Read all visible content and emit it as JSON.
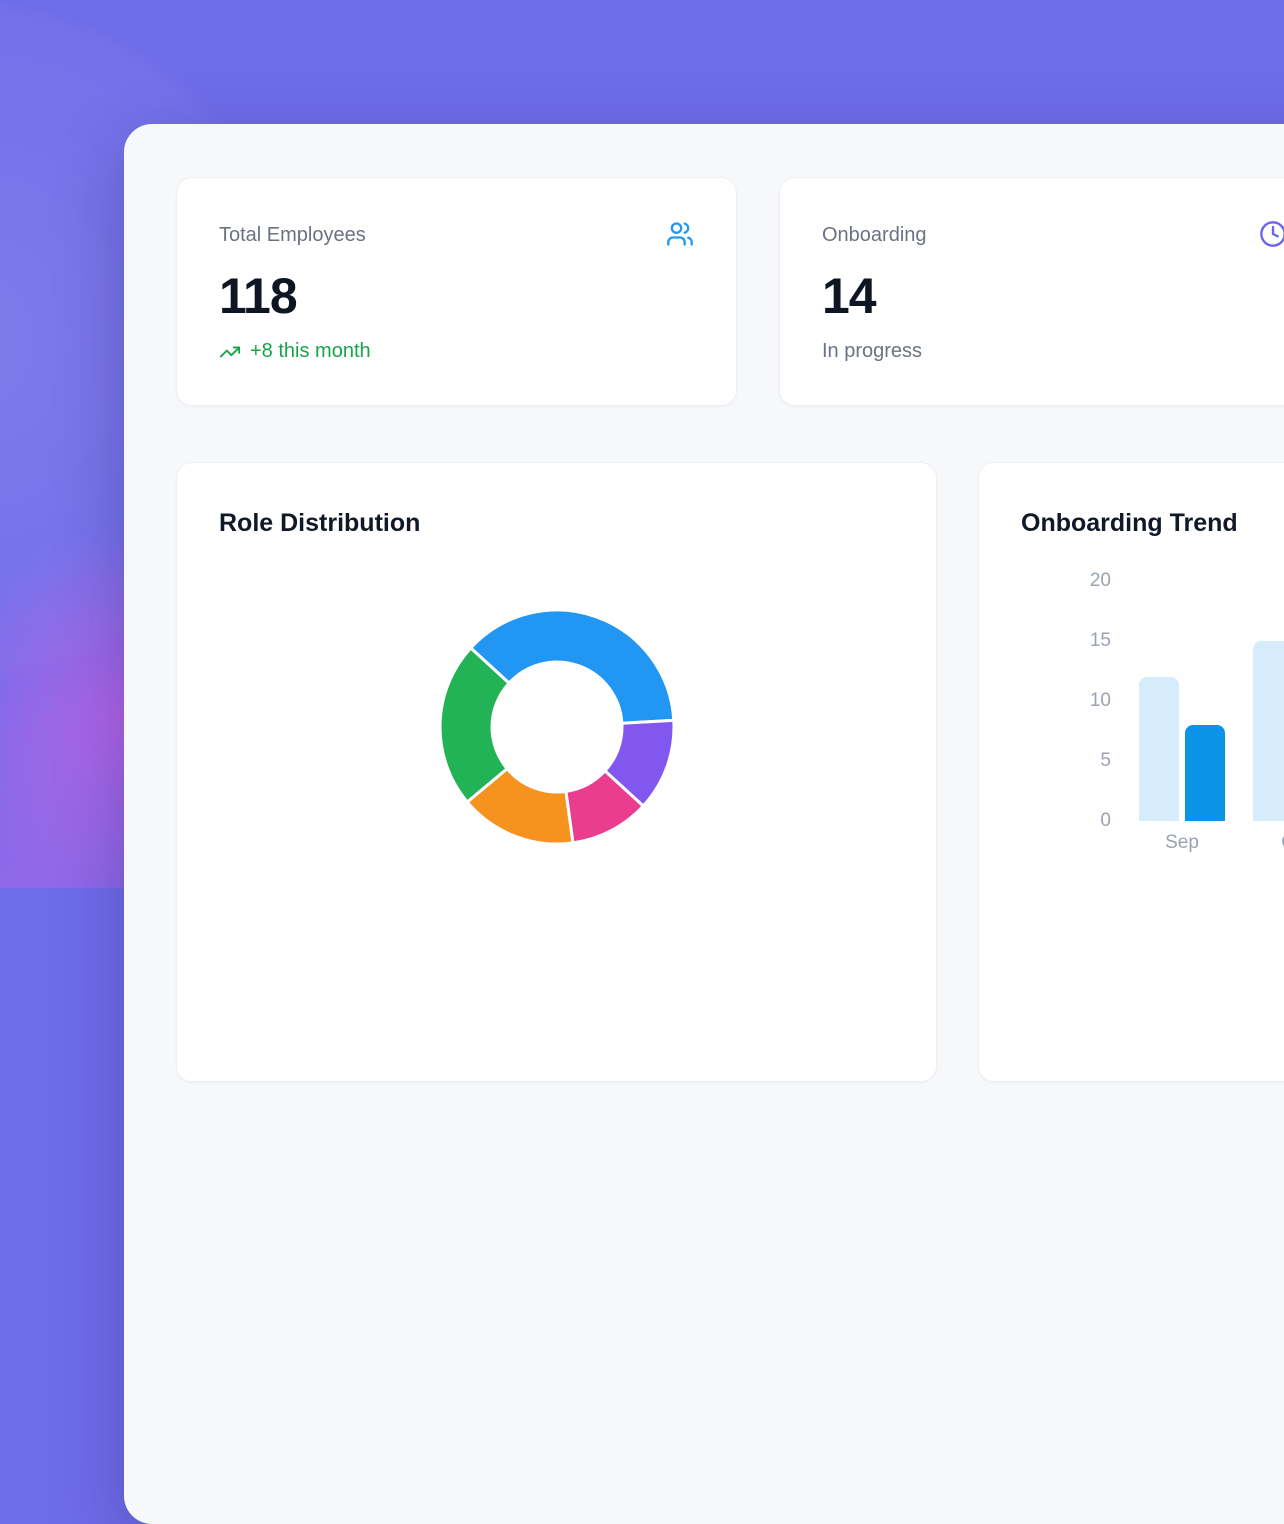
{
  "theme": {
    "background_purple": "#6f6ce9",
    "glow_pink": "#e95fe4",
    "panel_background": "#f7f8fa",
    "card_background": "#ffffff",
    "text_primary": "#0f1623",
    "text_secondary": "#6b7280",
    "axis_text": "#9aa3b0",
    "trend_green": "#17a449",
    "accent_blue": "#1d9bf0",
    "accent_indigo": "#6964f1"
  },
  "stats": [
    {
      "label": "Total Employees",
      "value": "118",
      "trend": "+8 this month",
      "trend_color": "#17a449",
      "icon": "users-icon",
      "icon_color": "#1d9bf0"
    },
    {
      "label": "Onboarding",
      "value": "14",
      "subtitle": "In progress",
      "icon": "clock-icon",
      "icon_color": "#6964f1"
    }
  ],
  "chart_data": [
    {
      "type": "pie",
      "variant": "doughnut",
      "title": "Role Distribution",
      "values": [
        44,
        15,
        13,
        19,
        27
      ],
      "colors": [
        "#2196f3",
        "#8257ef",
        "#eb3d8f",
        "#f6931f",
        "#21b356"
      ],
      "start_angle_deg": -47.5,
      "total": 118,
      "legend": "none",
      "labels_visible": false
    },
    {
      "type": "bar",
      "title": "Onboarding Trend",
      "categories": [
        "Sep",
        "Oct"
      ],
      "series": [
        {
          "name": "series-1",
          "color": "#d7ecfb",
          "values": [
            12,
            15
          ]
        },
        {
          "name": "series-2",
          "color": "#0b93e8",
          "values": [
            8,
            null
          ]
        }
      ],
      "yticks": [
        0,
        5,
        10,
        15,
        20
      ],
      "ylim": [
        0,
        20
      ],
      "grid": "off",
      "legend": "none"
    }
  ]
}
